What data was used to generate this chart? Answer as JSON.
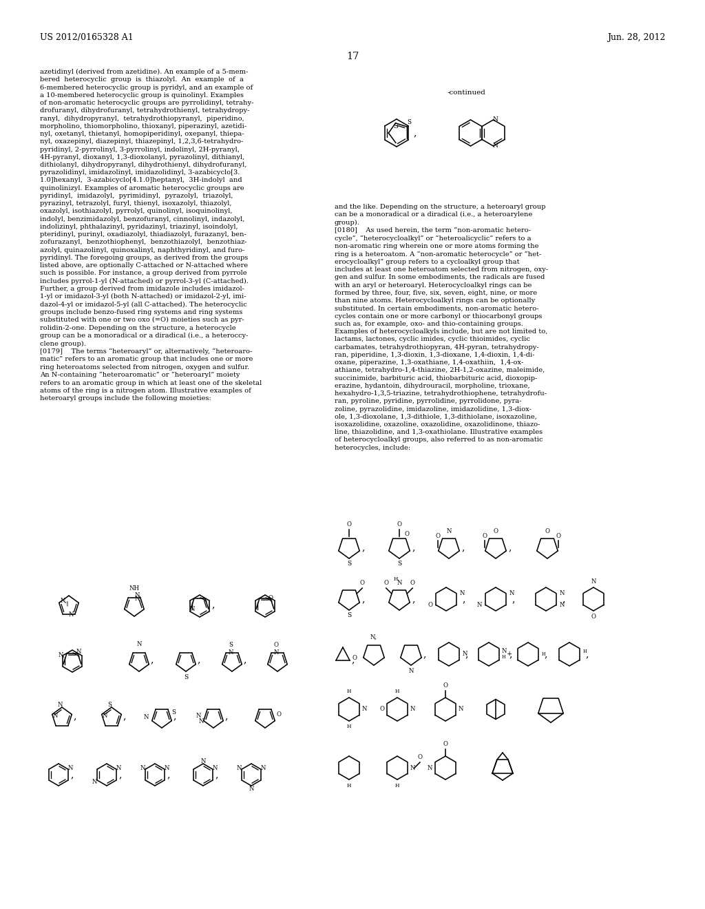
{
  "header_left": "US 2012/0165328 A1",
  "header_right": "Jun. 28, 2012",
  "page_number": "17",
  "bg": "#ffffff",
  "tc": "#000000",
  "left_col_text": "azetidinyl (derived from azetidine). An example of a 5-mem-\nbered  heterocyclic  group  is  thiazolyl.  An  example  of  a\n6-membered heterocyclic group is pyridyl, and an example of\na 10-membered heterocyclic group is quinolinyl. Examples\nof non-aromatic heterocyclic groups are pyrrolidinyl, tetrahy-\ndrofuranyl, dihydrofuranyl, tetrahydrothienyl, tetrahydropy-\nranyl,  dihydropyranyl,  tetrahydrothiopyranyl,  piperidino,\nmorpholino, thiomorpholino, thioxanyl, piperazinyl, azetidi-\nnyl, oxetanyl, thietanyl, homopiperidinyl, oxepanyl, thiepa-\nnyl, oxazepinyl, diazepinyl, thiazepinyl, 1,2,3,6-tetrahydro-\npyridinyl, 2-pyrrolinyl, 3-pyrrolinyl, indolinyl, 2H-pyranyl,\n4H-pyranyl, dioxanyl, 1,3-dioxolanyl, pyrazolinyl, dithianyl,\ndithiolanyl, dihydropyranyl, dihydrothienyl, dihydrofuranyl,\npyrazolidinyl, imidazolinyl, imidazolidinyl, 3-azabicyclo[3.\n1.0]hexanyl,  3-azabicyclo[4.1.0]heptanyl,  3H-indolyl  and\nquinolinizyl. Examples of aromatic heterocyclic groups are\npyridinyl,  imidazolyl,  pyrimidinyl,  pyrazolyl,  triazolyl,\npyrazinyl, tetrazolyl, furyl, thienyl, isoxazolyl, thiazolyl,\noxazolyl, isothiazolyl, pyrrolyl, quinolinyl, isoquinolinyl,\nindolyl, benzimidazolyl, benzofuranyl, cinnolinyl, indazolyl,\nindolizinyl, phthalazinyl, pyridazinyl, triazinyl, isoindolyl,\npteridinyl, purinyl, oxadiazolyl, thiadiazolyl, furazanyl, ben-\nzofurazanyl,  benzothiophenyl,  benzothiazolyl,  benzothiaz-\nazolyl, quinazolinyl, quinoxalinyl, naphthyridinyl, and furo-\npyridinyl. The foregoing groups, as derived from the groups\nlisted above, are optionally C-attached or N-attached where\nsuch is possible. For instance, a group derived from pyrrole\nincludes pyrrol-1-yl (N-attached) or pyrrol-3-yl (C-attached).\nFurther, a group derived from imidazole includes imidazol-\n1-yl or imidazol-3-yl (both N-attached) or imidazol-2-yl, imi-\ndazol-4-yl or imidazol-5-yl (all C-attached). The heterocyclic\ngroups include benzo-fused ring systems and ring systems\nsubstituted with one or two oxo (=O) moieties such as pyr-\nrolidin-2-one. Depending on the structure, a heterocycle\ngroup can be a monoradical or a diradical (i.e., a heteroccy-\nclene group).\n[0179]    The terms “heteroaryl” or, alternatively, “heteroaro-\nmatic” refers to an aromatic group that includes one or more\nring heteroatoms selected from nitrogen, oxygen and sulfur.\nAn N-containing “heteroaromatic” or “heteroaryl” moiety\nrefers to an aromatic group in which at least one of the skeletal\natoms of the ring is a nitrogen atom. Illustrative examples of\nheteroaryl groups include the following moieties:",
  "right_col_text_top": "and the like. Depending on the structure, a heteroaryl group\ncan be a monoradical or a diradical (i.e., a heteroarylene\ngroup).\n[0180]    As used herein, the term “non-aromatic hetero-\ncycle”, “heterocycloalkyl” or “heteroalicyclic” refers to a\nnon-aromatic ring wherein one or more atoms forming the\nring is a heteroatom. A “non-aromatic heterocycle” or “het-\nerocycloalkyl” group refers to a cycloalkyl group that\nincludes at least one heteroatom selected from nitrogen, oxy-\ngen and sulfur. In some embodiments, the radicals are fused\nwith an aryl or heteroaryl. Heterocycloalkyl rings can be\nformed by three, four, five, six, seven, eight, nine, or more\nthan nine atoms. Heterocycloalkyl rings can be optionally\nsubstituted. In certain embodiments, non-aromatic hetero-\ncycles contain one or more carbonyl or thiocarbonyl groups\nsuch as, for example, oxo- and thio-containing groups.\nExamples of heterocycloalkyls include, but are not limited to,\nlactams, lactones, cyclic imides, cyclic thioimides, cyclic\ncarbamates, tetrahydrothiopyran, 4H-pyran, tetrahydropy-\nran, piperidine, 1,3-dioxin, 1,3-dioxane, 1,4-dioxin, 1,4-di-\noxane, piperazine, 1,3-oxathiane, 1,4-oxathiin,  1,4-ox-\nathiane, tetrahydro-1,4-thiazine, 2H-1,2-oxazine, maleimide,\nsuccinimide, barbituric acid, thiobarbituric acid, dioxopip-\nerazine, hydantoin, dihydrouracil, morpholine, trioxane,\nhexahydro-1,3,5-triazine, tetrahydrothiophene, tetrahydrofu-\nran, pyroline, pyridine, pyrrolidine, pyrrolidone, pyra-\nzoline, pyrazolidine, imidazoline, imidazolidine, 1,3-diox-\nole, 1,3-dioxolane, 1,3-dithiole, 1,3-dithiolane, isoxazoline,\nisoxazolidine, oxazoline, oxazolidine, oxazolidinone, thiazo-\nline, thiazolidine, and 1,3-oxathiolane. Illustrative examples\nof heterocycloalkyl groups, also referred to as non-aromatic\nheterocycles, include:"
}
